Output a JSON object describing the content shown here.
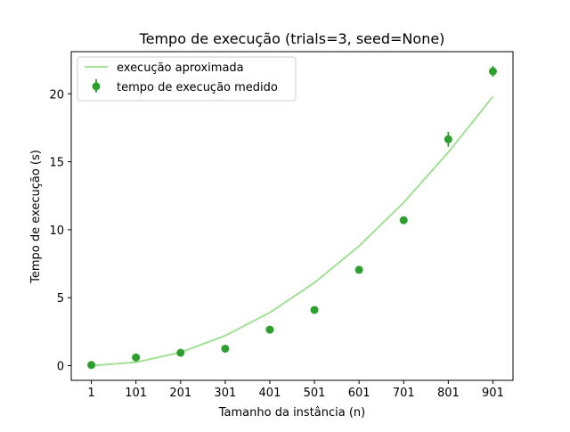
{
  "chart_data": {
    "type": "scatter",
    "title": "Tempo de execução (trials=3, seed=None)",
    "xlabel": "Tamanho da instância (n)",
    "ylabel": "Tempo de execução (s)",
    "x": [
      1,
      101,
      201,
      301,
      401,
      501,
      601,
      701,
      801,
      901
    ],
    "xlim": [
      -44,
      946
    ],
    "ylim": [
      -1.08,
      23.1
    ],
    "xticks": [
      "1",
      "101",
      "201",
      "301",
      "401",
      "501",
      "601",
      "701",
      "801",
      "901"
    ],
    "yticks": [
      0,
      5,
      10,
      15,
      20
    ],
    "ytick_labels": [
      "0",
      "5",
      "10",
      "15",
      "20"
    ],
    "grid": false,
    "legend_position": "upper-left",
    "series": [
      {
        "name": "execução aproximada",
        "kind": "line",
        "color": "#98df8a",
        "x": [
          1,
          101,
          201,
          301,
          401,
          501,
          601,
          701,
          801,
          901
        ],
        "values": [
          0.0,
          0.25,
          0.98,
          2.2,
          3.9,
          6.1,
          8.8,
          12.0,
          15.7,
          19.8
        ]
      },
      {
        "name": "tempo de execução medido",
        "kind": "errorbar",
        "color": "#2ca02c",
        "x": [
          1,
          101,
          201,
          301,
          401,
          501,
          601,
          701,
          801,
          901
        ],
        "values": [
          0.05,
          0.6,
          0.95,
          1.25,
          2.65,
          4.1,
          7.05,
          10.7,
          16.65,
          21.65
        ],
        "errors": [
          0.08,
          0.15,
          0.1,
          0.1,
          0.1,
          0.12,
          0.2,
          0.22,
          0.55,
          0.4
        ]
      }
    ]
  }
}
